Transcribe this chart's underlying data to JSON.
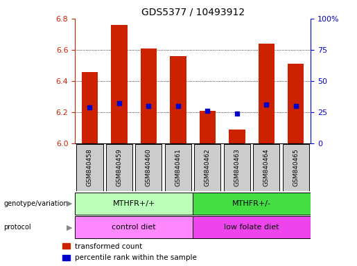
{
  "title": "GDS5377 / 10493912",
  "samples": [
    "GSM840458",
    "GSM840459",
    "GSM840460",
    "GSM840461",
    "GSM840462",
    "GSM840463",
    "GSM840464",
    "GSM840465"
  ],
  "bar_values": [
    6.46,
    6.76,
    6.61,
    6.56,
    6.21,
    6.09,
    6.64,
    6.51
  ],
  "dot_values": [
    6.23,
    6.26,
    6.24,
    6.24,
    6.21,
    6.19,
    6.25,
    6.24
  ],
  "ymin": 6.0,
  "ymax": 6.8,
  "bar_color": "#cc2200",
  "dot_color": "#0000cc",
  "genotype_groups": [
    {
      "label": "MTHFR+/+",
      "start": 0,
      "end": 4,
      "color": "#bbffbb"
    },
    {
      "label": "MTHFR+/-",
      "start": 4,
      "end": 8,
      "color": "#44dd44"
    }
  ],
  "protocol_groups": [
    {
      "label": "control diet",
      "start": 0,
      "end": 4,
      "color": "#ff88ff"
    },
    {
      "label": "low folate diet",
      "start": 4,
      "end": 8,
      "color": "#ee44ee"
    }
  ],
  "legend_items": [
    {
      "color": "#cc2200",
      "label": "transformed count"
    },
    {
      "color": "#0000cc",
      "label": "percentile rank within the sample"
    }
  ],
  "left_labels": [
    "genotype/variation",
    "protocol"
  ],
  "yticks": [
    6.0,
    6.2,
    6.4,
    6.6,
    6.8
  ],
  "right_yticks": [
    0,
    25,
    50,
    75,
    100
  ],
  "right_ylabels": [
    "0",
    "25",
    "50",
    "75",
    "100%"
  ],
  "grid_values": [
    6.2,
    6.4,
    6.6
  ],
  "tick_label_color": "#cc2200",
  "right_tick_color": "#0000cc",
  "box_color": "#cccccc",
  "title_fontsize": 10,
  "tick_fontsize": 8,
  "label_fontsize": 8,
  "row_fontsize": 8
}
